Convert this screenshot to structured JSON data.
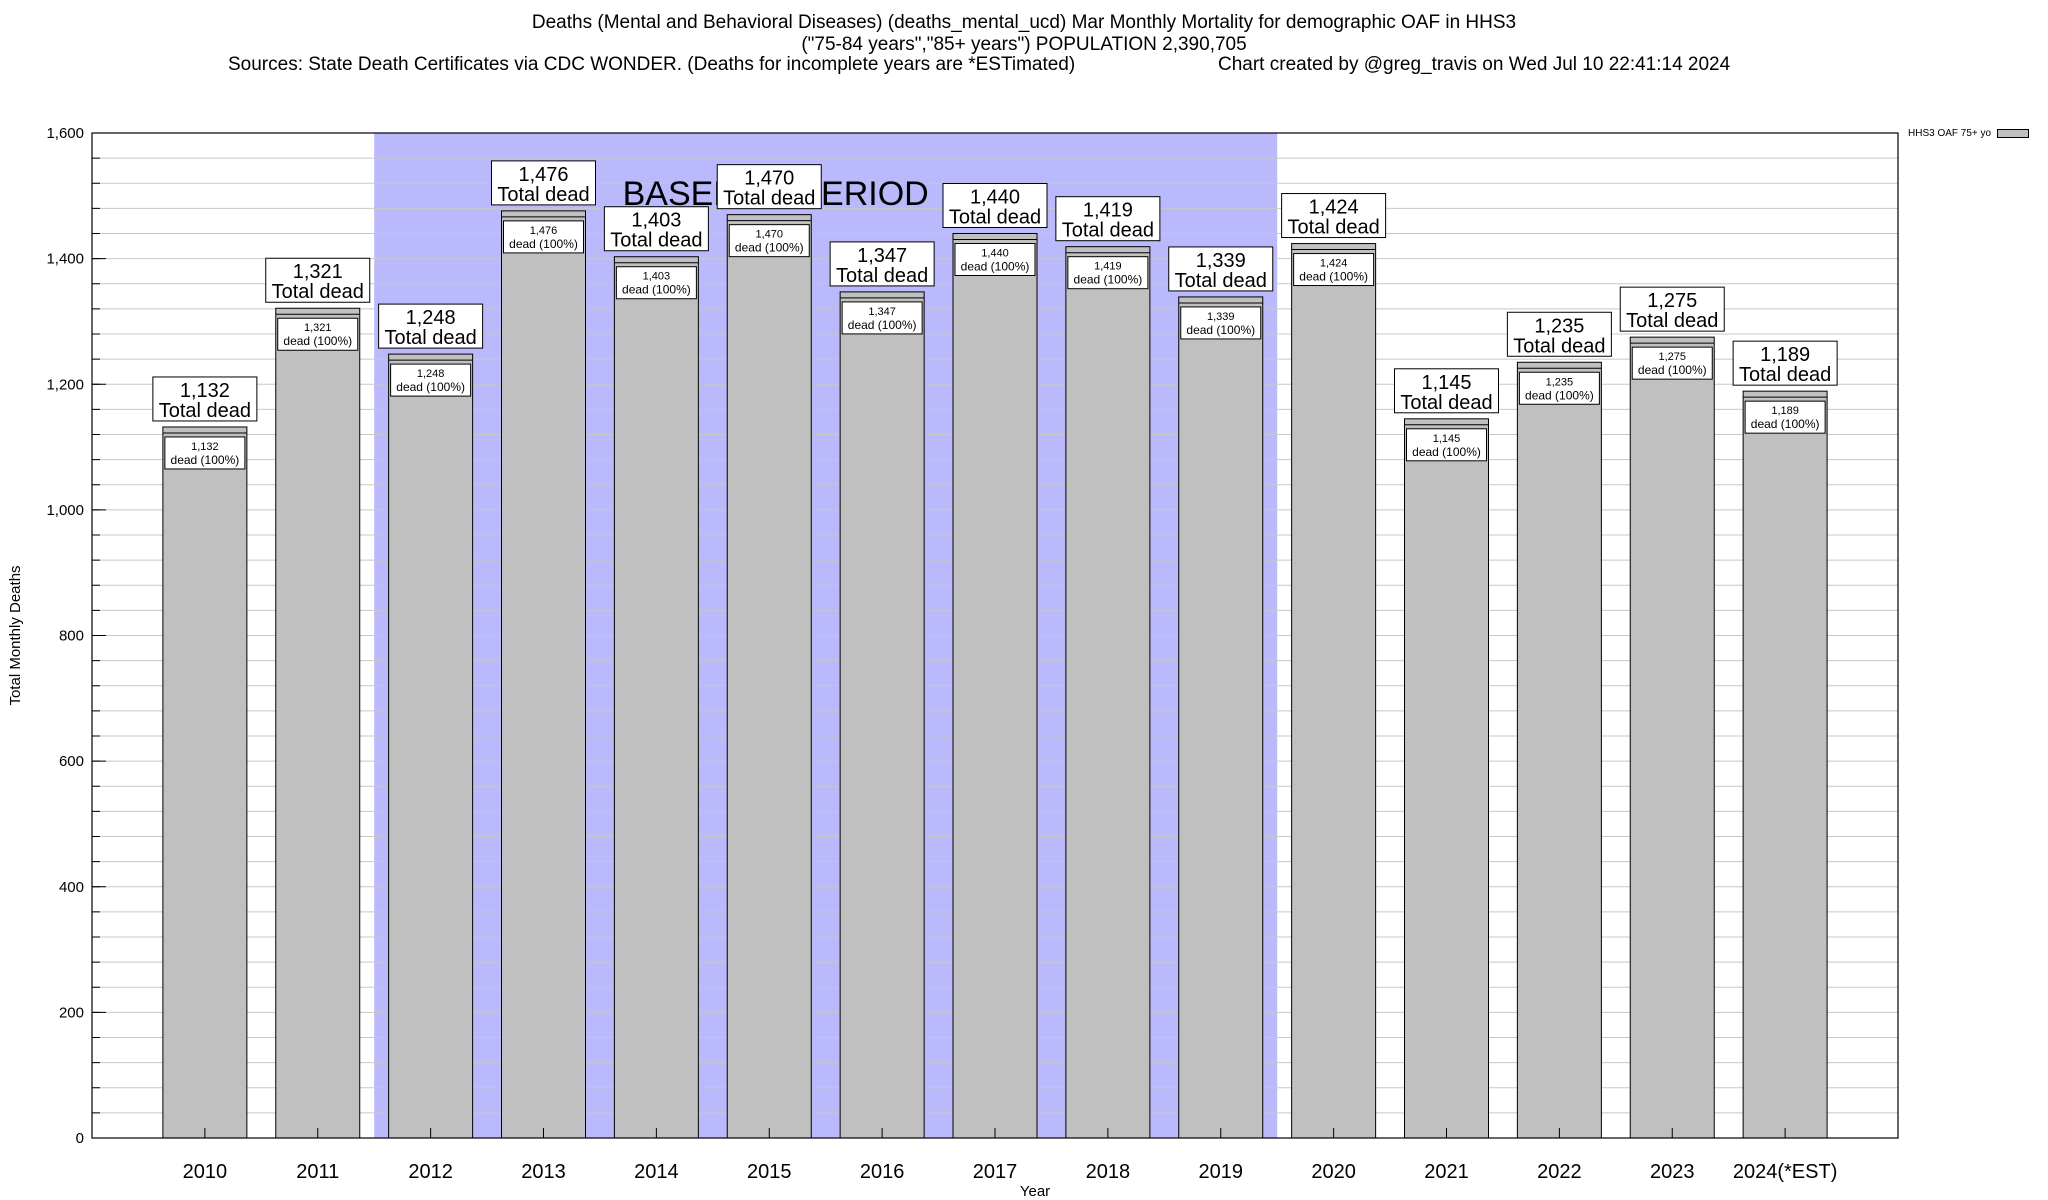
{
  "header": {
    "line1": "Deaths (Mental and Behavioral Diseases) (deaths_mental_ucd) Mar Monthly Mortality for demographic OAF in HHS3",
    "line2": "(\"75-84 years\",\"85+ years\") POPULATION 2,390,705",
    "line3_left": "Sources: State Death Certificates via CDC WONDER. (Deaths for incomplete years are *ESTimated)",
    "line3_right": "Chart created by @greg_travis on Wed Jul 10 22:41:14 2024"
  },
  "legend": {
    "label": "HHS3 OAF 75+ yo"
  },
  "colors": {
    "bar": "#c0c0c0",
    "baseline_band": "#b9b9fb",
    "grid": "#c8c8c8"
  },
  "chart_data": {
    "type": "bar",
    "categories": [
      "2010",
      "2011",
      "2012",
      "2013",
      "2014",
      "2015",
      "2016",
      "2017",
      "2018",
      "2019",
      "2020",
      "2021",
      "2022",
      "2023",
      "2024(*EST)"
    ],
    "series": [
      {
        "name": "HHS3 OAF 75+ yo",
        "values": [
          1132,
          1321,
          1248,
          1476,
          1403,
          1470,
          1347,
          1440,
          1419,
          1339,
          1424,
          1145,
          1235,
          1275,
          1189
        ]
      }
    ],
    "value_labels": [
      "1,132",
      "1,321",
      "1,248",
      "1,476",
      "1,403",
      "1,470",
      "1,347",
      "1,440",
      "1,419",
      "1,339",
      "1,424",
      "1,145",
      "1,235",
      "1,275",
      "1,189"
    ],
    "top_label_suffix": "Total dead",
    "inner_label_suffix": "dead (100%)",
    "xlabel": "Year",
    "ylabel": "Total Monthly Deaths",
    "ylim": [
      0,
      1600
    ],
    "yticks": [
      0,
      200,
      400,
      600,
      800,
      1000,
      1200,
      1400,
      1600
    ],
    "ytick_labels": [
      "0",
      "200",
      "400",
      "600",
      "800",
      "1,000",
      "1,200",
      "1,400",
      "1,600"
    ],
    "baseline_period": {
      "label": "BASELINE PERIOD",
      "start": "2012",
      "end": "2019"
    },
    "grid": true,
    "legend_position": "top-right"
  }
}
